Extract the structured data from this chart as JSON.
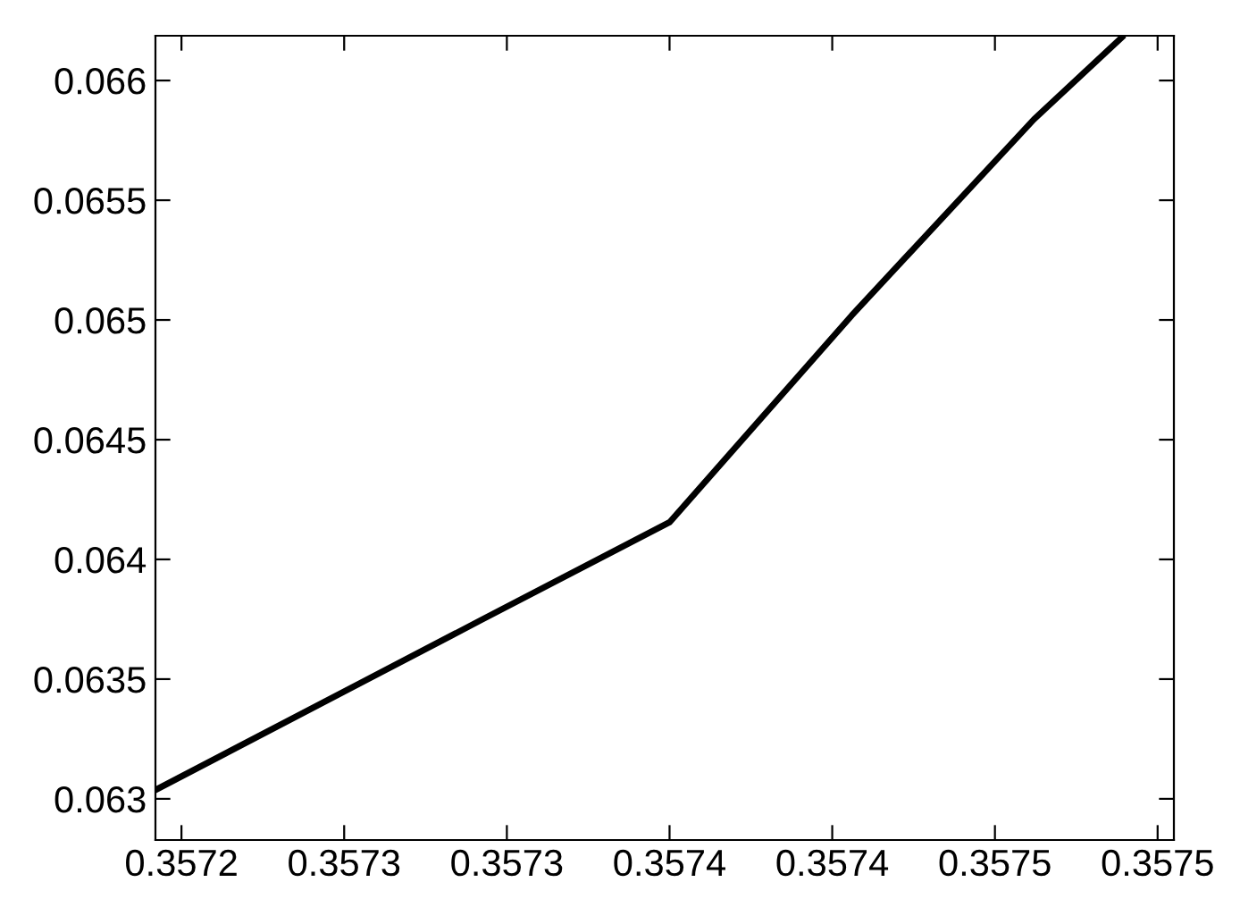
{
  "chart_data": {
    "type": "line",
    "x": [
      0.357192,
      0.357292,
      0.35735,
      0.357406,
      0.357462,
      0.357489
    ],
    "series": [
      {
        "color": "#000000",
        "values": [
          0.063037,
          0.063746,
          0.064155,
          0.065019,
          0.065838,
          0.06618
        ]
      }
    ],
    "xlim": [
      0.357192,
      0.357505
    ],
    "ylim": [
      0.062828,
      0.066187
    ],
    "xticks": [
      {
        "value": 0.3572,
        "label": "0.3572"
      },
      {
        "value": 0.35725,
        "label": "0.3573"
      },
      {
        "value": 0.3573,
        "label": "0.3573"
      },
      {
        "value": 0.35735,
        "label": "0.3574"
      },
      {
        "value": 0.3574,
        "label": "0.3574"
      },
      {
        "value": 0.35745,
        "label": "0.3575"
      },
      {
        "value": 0.3575,
        "label": "0.3575"
      }
    ],
    "yticks": [
      0.063,
      0.0635,
      0.064,
      0.0645,
      0.065,
      0.0655,
      0.066
    ],
    "grid": false,
    "marker": "none",
    "line_style": "solid"
  }
}
